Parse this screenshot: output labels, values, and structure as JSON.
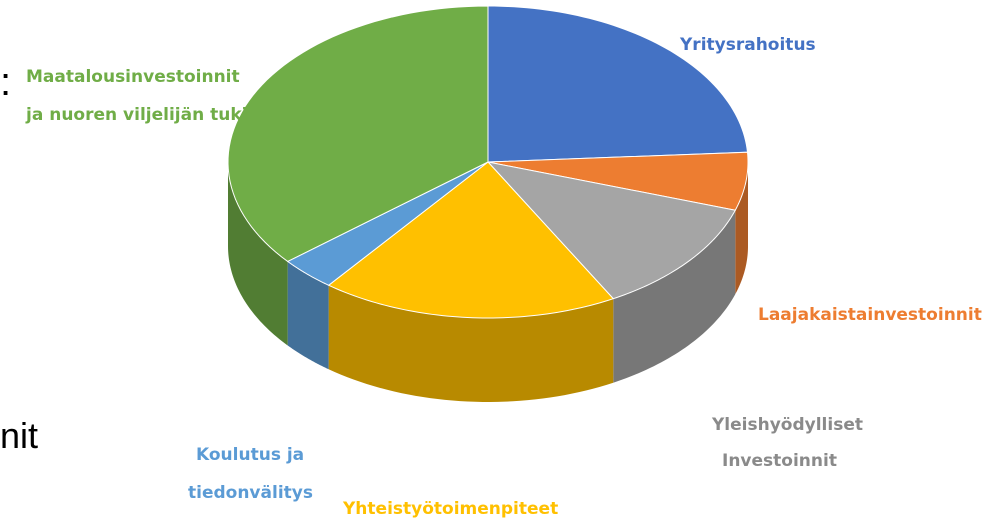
{
  "chart_data": {
    "type": "pie",
    "title": "",
    "three_d": true,
    "slices": [
      {
        "label": "Yritysrahoitus",
        "value": 24,
        "color": "#4472C4"
      },
      {
        "label": "Laajakaistainvestoinnit",
        "value": 6,
        "color": "#ED7D31"
      },
      {
        "label": "Yleishyödylliset Investoinnit",
        "value": 12,
        "color": "#A5A5A5"
      },
      {
        "label": "Yhteistyötoimenpiteet",
        "value": 18.5,
        "color": "#FFC000"
      },
      {
        "label": "Koulutus ja tiedonvälitys",
        "value": 3.5,
        "color": "#5B9BD5"
      },
      {
        "label": "Maatalousinvestoinnit ja nuoren viljelijän tuki",
        "value": 36,
        "color": "#70AD47"
      }
    ]
  },
  "labels": {
    "yritysrahoitus": "Yritysrahoitus",
    "laajakaista": "Laajakaistainvestoinnit",
    "yleis_1": "Yleishyödylliset",
    "yleis_2": "Investoinnit",
    "yhteistyo": "Yhteistyötoimenpiteet",
    "koulutus_1": "Koulutus ja",
    "koulutus_2": "tiedonvälitys",
    "maatalous_1": "Maatalousinvestoinnit",
    "maatalous_2": "ja nuoren viljelijän tuki"
  },
  "background_text": {
    "colon": ":",
    "fragment": "nit"
  }
}
